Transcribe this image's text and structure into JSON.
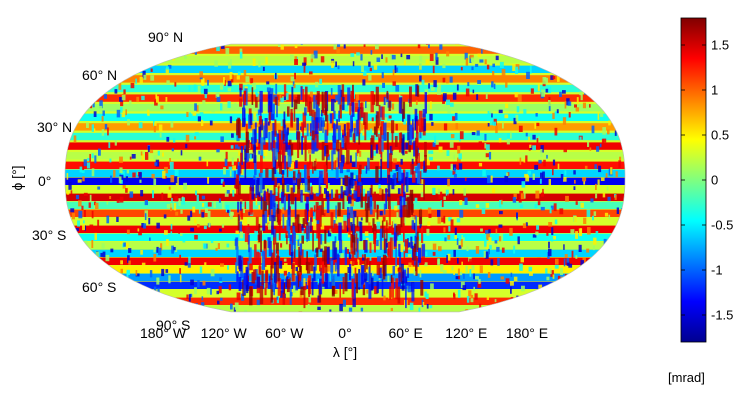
{
  "chart_data": {
    "type": "heatmap",
    "projection": "Robinson",
    "ylabel": "ϕ [°]",
    "xlabel": "λ [°]",
    "lat_ticks": [
      {
        "value": 90,
        "label": "90° N"
      },
      {
        "value": 60,
        "label": "60° N"
      },
      {
        "value": 30,
        "label": "30° N"
      },
      {
        "value": 0,
        "label": "0°"
      },
      {
        "value": -30,
        "label": "30° S"
      },
      {
        "value": -60,
        "label": "60° S"
      },
      {
        "value": -90,
        "label": "90° S"
      }
    ],
    "lon_ticks": [
      {
        "value": -180,
        "label": "180° W"
      },
      {
        "value": -120,
        "label": "120° W"
      },
      {
        "value": -60,
        "label": "60° W"
      },
      {
        "value": 0,
        "label": "0°"
      },
      {
        "value": 60,
        "label": "60° E"
      },
      {
        "value": 120,
        "label": "120° E"
      },
      {
        "value": 180,
        "label": "180° E"
      }
    ],
    "colorbar": {
      "colormap": "jet",
      "range": [
        -1.8,
        1.8
      ],
      "ticks": [
        {
          "value": 1.5,
          "label": "1.5"
        },
        {
          "value": 1,
          "label": "1"
        },
        {
          "value": 0.5,
          "label": "0.5"
        },
        {
          "value": 0,
          "label": "0"
        },
        {
          "value": -0.5,
          "label": "-0.5"
        },
        {
          "value": -1,
          "label": "-1"
        },
        {
          "value": -1.5,
          "label": "-1.5"
        }
      ],
      "unit": "[mrad]"
    },
    "latitude_bands": [
      {
        "lat": 86,
        "value": 0.5
      },
      {
        "lat": 80,
        "value": 1.0
      },
      {
        "lat": 74,
        "value": 0.2
      },
      {
        "lat": 68,
        "value": -0.6
      },
      {
        "lat": 62,
        "value": 0.9
      },
      {
        "lat": 56,
        "value": -0.3
      },
      {
        "lat": 50,
        "value": 1.2
      },
      {
        "lat": 44,
        "value": 0.1
      },
      {
        "lat": 38,
        "value": -0.4
      },
      {
        "lat": 32,
        "value": 0.8
      },
      {
        "lat": 26,
        "value": -0.3
      },
      {
        "lat": 20,
        "value": 1.4
      },
      {
        "lat": 14,
        "value": 0.2
      },
      {
        "lat": 8,
        "value": 1.3
      },
      {
        "lat": 3,
        "value": -0.6
      },
      {
        "lat": -2,
        "value": -1.4
      },
      {
        "lat": -7,
        "value": 0.3
      },
      {
        "lat": -12,
        "value": 1.5
      },
      {
        "lat": -17,
        "value": -0.2
      },
      {
        "lat": -22,
        "value": 1.1
      },
      {
        "lat": -27,
        "value": 0.3
      },
      {
        "lat": -32,
        "value": 1.4
      },
      {
        "lat": -37,
        "value": -0.4
      },
      {
        "lat": -42,
        "value": 0.2
      },
      {
        "lat": -47,
        "value": -0.6
      },
      {
        "lat": -52,
        "value": 1.4
      },
      {
        "lat": -57,
        "value": 0.5
      },
      {
        "lat": -62,
        "value": -0.8
      },
      {
        "lat": -67,
        "value": -1.2
      },
      {
        "lat": -72,
        "value": 0.3
      },
      {
        "lat": -77,
        "value": 1.2
      },
      {
        "lat": -82,
        "value": 0.2
      },
      {
        "lat": -87,
        "value": 0.9
      }
    ]
  }
}
